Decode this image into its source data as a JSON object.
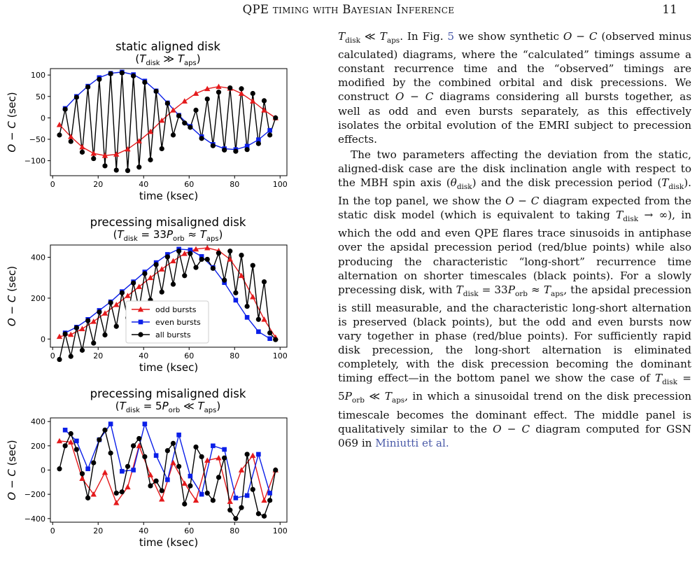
{
  "header": {
    "running_title": "QPE timing with Bayesian Inference",
    "page_number": "11"
  },
  "figure": {
    "panels": [
      {
        "title": "static aligned disk",
        "subtitle_html": "(<i>T</i><sub>disk</sub> ≫ <i>T</i><sub>aps</sub>)"
      },
      {
        "title": "precessing misaligned disk",
        "subtitle_html": "(<i>T</i><sub>disk</sub> = 33<i>P</i><sub>orb</sub> ≈ <i>T</i><sub>aps</sub>)"
      },
      {
        "title": "precessing misaligned disk",
        "subtitle_html": "(<i>T</i><sub>disk</sub> = 5<i>P</i><sub>orb</sub> ≪ <i>T</i><sub>aps</sub>)"
      }
    ],
    "legend": [
      "odd bursts",
      "even bursts",
      "all bursts"
    ]
  },
  "chart_data": [
    {
      "type": "line",
      "title": "static aligned disk",
      "xlabel": "time (ksec)",
      "ylabel": "O − C (sec)",
      "xlim": [
        -1,
        103
      ],
      "ylim": [
        -135,
        115
      ],
      "xticks": [
        0,
        20,
        40,
        60,
        80,
        100
      ],
      "yticks": [
        -100,
        -50,
        0,
        50,
        100
      ],
      "ytick_labels": [
        "−100",
        "−50",
        "0",
        "50",
        "100"
      ],
      "series": [
        {
          "name": "odd bursts",
          "color": "#e41a1c",
          "marker": "triangle",
          "x": [
            3,
            8,
            13,
            18,
            23,
            28,
            33,
            38,
            43,
            48,
            53,
            58,
            63,
            68,
            73,
            78,
            83,
            88,
            93,
            98
          ],
          "y": [
            -16,
            -44,
            -68,
            -83,
            -88,
            -85,
            -73,
            -54,
            -32,
            -6,
            18,
            39,
            57,
            68,
            73,
            69,
            57,
            39,
            18,
            0
          ]
        },
        {
          "name": "even bursts",
          "color": "#0b1fe8",
          "marker": "square",
          "x": [
            5.5,
            10.5,
            15.5,
            20.5,
            25.5,
            30.5,
            35.5,
            40.5,
            45.5,
            50.5,
            55.5,
            60.5,
            65.5,
            70.5,
            75.5,
            80.5,
            85.5,
            90.5,
            95.5
          ],
          "y": [
            22,
            50,
            74,
            94,
            104,
            107,
            101,
            86,
            63,
            35,
            6,
            -20,
            -44,
            -62,
            -72,
            -74,
            -66,
            -51,
            -29
          ]
        },
        {
          "name": "all bursts",
          "color": "#000000",
          "marker": "circle",
          "x": [
            3,
            5.5,
            8,
            10.5,
            13,
            15.5,
            18,
            20.5,
            23,
            25.5,
            28,
            30.5,
            33,
            35.5,
            38,
            40.5,
            43,
            45.5,
            48,
            50.5,
            53,
            55.5,
            58,
            60.5,
            63,
            65.5,
            68,
            70.5,
            73,
            75.5,
            78,
            80.5,
            83,
            85.5,
            88,
            90.5,
            93,
            95.5,
            98
          ],
          "y": [
            -40,
            20,
            -55,
            48,
            -80,
            72,
            -95,
            90,
            -112,
            103,
            -122,
            105,
            -123,
            98,
            -115,
            83,
            -98,
            62,
            -72,
            34,
            -40,
            5,
            -12,
            -22,
            18,
            -48,
            44,
            -65,
            60,
            -75,
            70,
            -78,
            68,
            -74,
            57,
            -60,
            40,
            -40,
            0
          ]
        }
      ]
    },
    {
      "type": "line",
      "title": "precessing misaligned disk",
      "xlabel": "time (ksec)",
      "ylabel": "O − C (sec)",
      "xlim": [
        -1,
        103
      ],
      "ylim": [
        -40,
        460
      ],
      "xticks": [
        0,
        20,
        40,
        60,
        80,
        100
      ],
      "yticks": [
        0,
        200,
        400
      ],
      "legend": {
        "entries": [
          "odd bursts",
          "even bursts",
          "all bursts"
        ],
        "position": "lower-center"
      },
      "series": [
        {
          "name": "odd bursts",
          "color": "#e41a1c",
          "marker": "triangle",
          "x": [
            3,
            8,
            13,
            18,
            23,
            28,
            33,
            38,
            43,
            48,
            53,
            58,
            63,
            68,
            73,
            78,
            83,
            88,
            93,
            98
          ],
          "y": [
            12,
            22,
            50,
            86,
            126,
            168,
            212,
            256,
            300,
            342,
            382,
            418,
            440,
            446,
            432,
            390,
            310,
            206,
            96,
            8
          ]
        },
        {
          "name": "even bursts",
          "color": "#0b1fe8",
          "marker": "square",
          "x": [
            5.5,
            10.5,
            15.5,
            20.5,
            25.5,
            30.5,
            35.5,
            40.5,
            45.5,
            50.5,
            55.5,
            60.5,
            65.5,
            70.5,
            75.5,
            80.5,
            85.5,
            90.5,
            95.5
          ],
          "y": [
            30,
            58,
            96,
            140,
            182,
            232,
            280,
            328,
            374,
            414,
            440,
            436,
            404,
            350,
            276,
            190,
            106,
            36,
            2
          ]
        },
        {
          "name": "all bursts",
          "color": "#000000",
          "marker": "circle",
          "x": [
            3,
            5.5,
            8,
            10.5,
            13,
            15.5,
            18,
            20.5,
            23,
            25.5,
            28,
            30.5,
            33,
            35.5,
            38,
            40.5,
            43,
            45.5,
            48,
            50.5,
            53,
            55.5,
            58,
            60.5,
            63,
            65.5,
            68,
            70.5,
            73,
            75.5,
            78,
            80.5,
            83,
            85.5,
            88,
            90.5,
            93,
            95.5,
            98
          ],
          "y": [
            -100,
            25,
            -85,
            55,
            -55,
            90,
            -20,
            132,
            20,
            178,
            62,
            226,
            104,
            274,
            148,
            320,
            190,
            364,
            230,
            402,
            268,
            430,
            310,
            418,
            350,
            390,
            390,
            346,
            420,
            288,
            430,
            226,
            410,
            160,
            360,
            96,
            280,
            30,
            -3
          ]
        }
      ]
    },
    {
      "type": "line",
      "title": "precessing misaligned disk",
      "xlabel": "time (ksec)",
      "ylabel": "O − C (sec)",
      "xlim": [
        -1,
        103
      ],
      "ylim": [
        -430,
        430
      ],
      "xticks": [
        0,
        20,
        40,
        60,
        80,
        100
      ],
      "yticks": [
        -400,
        -200,
        0,
        200,
        400
      ],
      "ytick_labels": [
        "−400",
        "−200",
        "0",
        "200",
        "400"
      ],
      "series": [
        {
          "name": "odd bursts",
          "color": "#e41a1c",
          "marker": "triangle",
          "x": [
            3,
            8,
            13,
            18,
            23,
            28,
            33,
            38,
            43,
            48,
            53,
            58,
            63,
            68,
            73,
            78,
            83,
            88,
            93,
            98
          ],
          "y": [
            240,
            230,
            -70,
            -200,
            -20,
            -270,
            -140,
            200,
            -40,
            -240,
            60,
            -110,
            -250,
            80,
            100,
            -260,
            0,
            120,
            -250,
            0
          ]
        },
        {
          "name": "even bursts",
          "color": "#0b1fe8",
          "marker": "square",
          "x": [
            5.5,
            10.5,
            15.5,
            20.5,
            25.5,
            30.5,
            35.5,
            40.5,
            45.5,
            50.5,
            55.5,
            60.5,
            65.5,
            70.5,
            75.5,
            80.5,
            85.5,
            90.5,
            95.5
          ],
          "y": [
            330,
            240,
            10,
            250,
            380,
            -10,
            0,
            380,
            120,
            -80,
            290,
            -50,
            -200,
            200,
            170,
            -230,
            -210,
            130,
            -190
          ]
        },
        {
          "name": "all bursts",
          "color": "#000000",
          "marker": "circle",
          "x": [
            3,
            5.5,
            8,
            10.5,
            13,
            15.5,
            18,
            20.5,
            23,
            25.5,
            28,
            30.5,
            33,
            35.5,
            38,
            40.5,
            43,
            45.5,
            48,
            50.5,
            53,
            55.5,
            58,
            60.5,
            63,
            65.5,
            68,
            70.5,
            73,
            75.5,
            78,
            80.5,
            83,
            85.5,
            88,
            90.5,
            93,
            95.5,
            98
          ],
          "y": [
            10,
            200,
            300,
            170,
            -30,
            -230,
            60,
            250,
            330,
            140,
            -190,
            -180,
            30,
            200,
            260,
            110,
            -130,
            -90,
            -170,
            160,
            220,
            30,
            -280,
            -130,
            190,
            110,
            -190,
            -250,
            -60,
            100,
            -330,
            -400,
            -310,
            130,
            -160,
            -360,
            -380,
            -250,
            0
          ]
        }
      ]
    }
  ],
  "text": {
    "p1_html": "<span class=\"m\">T</span><sub>disk</sub> ≪ <span class=\"m\">T</span><sub>aps</sub>. In Fig. <span class=\"link\">5</span> we show synthetic <span class=\"m\">O</span> − <span class=\"m\">C</span> (observed minus calculated) diagrams, where the “calculated” timings assume a constant recurrence time and the “observed” timings are modified by the combined orbital and disk precessions. We construct <span class=\"m\">O</span> − <span class=\"m\">C</span> diagrams considering all bursts together, as well as odd and even bursts separately, as this effectively isolates the orbital evolution of the EMRI subject to precession effects.",
    "p2_html": "The two parameters affecting the deviation from the static, aligned-disk case are the disk inclination angle with respect to the MBH spin axis (<span class=\"m\">θ</span><sub>disk</sub>) and the disk precession period (<span class=\"m\">T</span><sub>disk</sub>). In the top panel, we show the <span class=\"m\">O</span> − <span class=\"m\">C</span> diagram expected from the static disk model (which is equivalent to taking <span class=\"m\">T</span><sub>disk</sub> → ∞), in which the odd and even QPE flares trace sinusoids in antiphase over the apsidal precession period (red/blue points) while also producing the characteristic “long-short” recurrence time alternation on shorter timescales (black points). For a slowly precessing disk, with <span class=\"m\">T</span><sub>disk</sub> = 33<span class=\"m\">P</span><sub>orb</sub> ≈ <span class=\"m\">T</span><sub>aps</sub>, the apsidal precession is still measurable, and the characteristic long-short alternation is preserved (black points), but the odd and even bursts now vary together in phase (red/blue points). For sufficiently rapid disk precession, the long-short alternation is eliminated completely, with the disk precession becoming the dominant timing effect—in the bottom panel we show the case of <span class=\"m\">T</span><sub>disk</sub> = 5<span class=\"m\">P</span><sub>orb</sub> ≪ <span class=\"m\">T</span><sub>aps</sub>, in which a sinusoidal trend on the disk precession timescale becomes the dominant effect. The middle panel is qualitatively similar to the <span class=\"m\">O</span> − <span class=\"m\">C</span> diagram computed for GSN 069 in <span class=\"link\">Miniutti et al.</span>"
  }
}
